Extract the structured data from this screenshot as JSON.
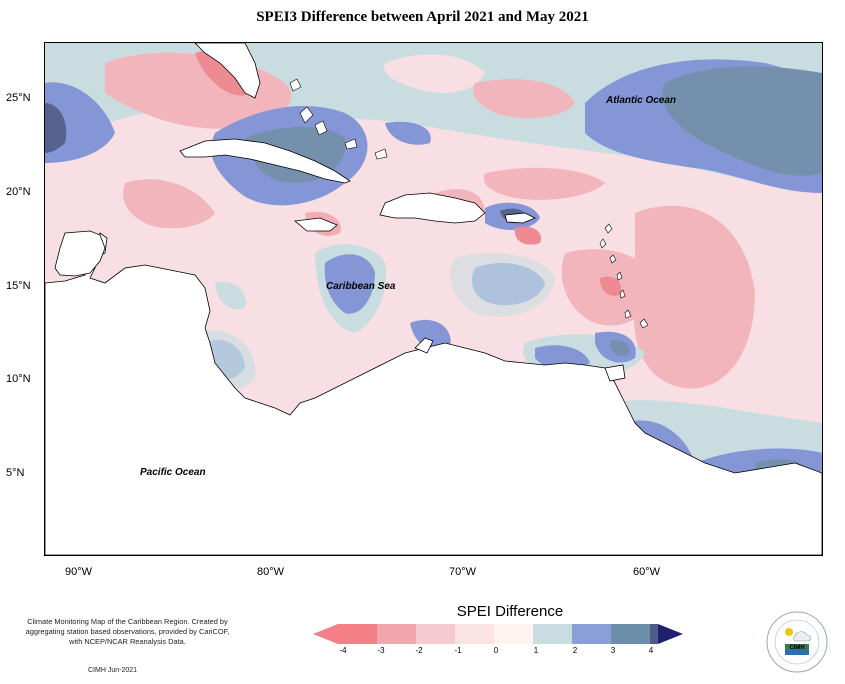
{
  "title": "SPEI3 Difference between April 2021 and May 2021",
  "lat_labels": [
    "25°N",
    "20°N",
    "15°N",
    "10°N",
    "5°N"
  ],
  "lon_labels": [
    "90°W",
    "80°W",
    "70°W",
    "60°W"
  ],
  "ocean_labels": {
    "atlantic": "Atlantic Ocean",
    "caribbean": "Caribbean Sea",
    "pacific": "Pacific Ocean"
  },
  "credit": "Climate Monitoring Map of the Caribbean Region. Created by aggregating station based observations, provided by CariCOF, with NCEP/NCAR Reanalysis Data.",
  "credit_date": "CIMH Jun-2021",
  "legend": {
    "title": "SPEI Difference",
    "ticks": [
      "-4",
      "-3",
      "-2",
      "-1",
      "0",
      "1",
      "2",
      "3",
      "4"
    ],
    "colors": [
      "#f47f87",
      "#f2a6ad",
      "#f6cad1",
      "#fbe3e5",
      "#fdf3f1",
      "#c9dce0",
      "#8a9fd6",
      "#6d8ea8",
      "#4f5c8a",
      "#1f1f6e"
    ]
  },
  "logo_text": "CIMH",
  "colors": {
    "deep_negative": "#ee8a92",
    "negative": "#f2b5bc",
    "light_negative": "#f8dfe3",
    "neutral": "#fbf2f1",
    "light_positive": "#c9dde1",
    "positive": "#8496d6",
    "strong_positive": "#7590ad",
    "very_strong_positive": "#56638f",
    "land": "#ffffff"
  }
}
